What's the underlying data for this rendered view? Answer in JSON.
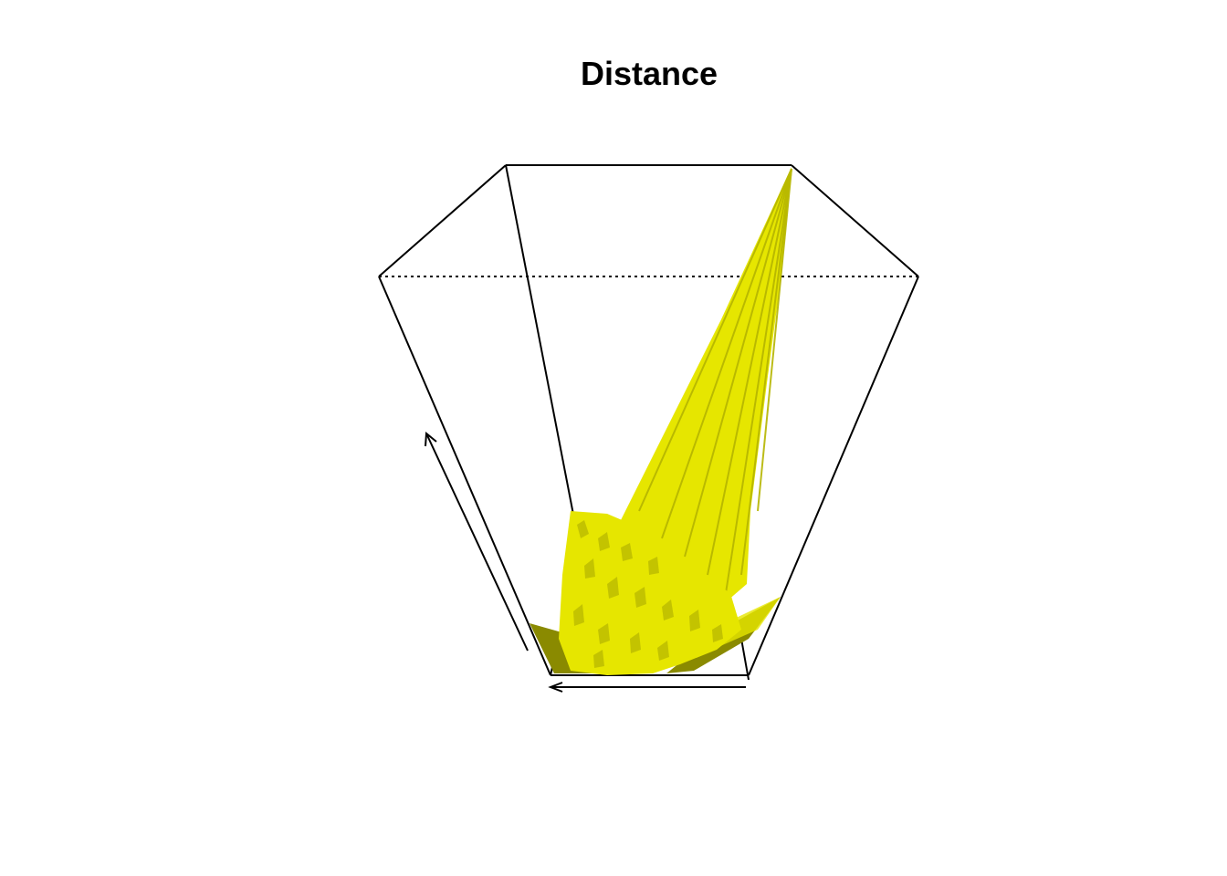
{
  "chart_data": {
    "type": "surface3d",
    "title": "Distance",
    "xlabel": "",
    "ylabel": "",
    "zlabel": "",
    "surface_color": "#E6E600",
    "shade_color": "#8A8A00",
    "background": "#FFFFFF",
    "grid": false,
    "legend": "none"
  }
}
